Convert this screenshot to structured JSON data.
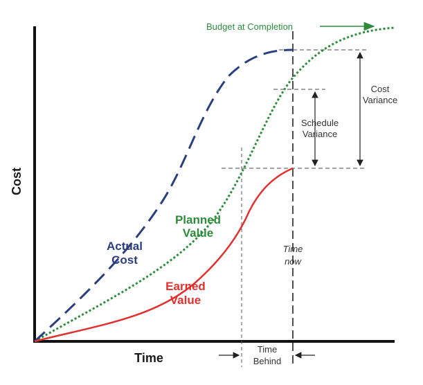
{
  "axes": {
    "x_title": "Time",
    "y_title": "Cost"
  },
  "labels": {
    "budget_at_completion": "Budget at Completion",
    "planned_value": [
      "Planned",
      "Value"
    ],
    "actual_cost": [
      "Actual",
      "Cost"
    ],
    "earned_value": [
      "Earned",
      "Value"
    ],
    "cost_variance": [
      "Cost",
      "Variance"
    ],
    "schedule_variance": [
      "Schedule",
      "Variance"
    ],
    "time_now": [
      "Time",
      "now"
    ],
    "time_behind": [
      "Time",
      "Behind"
    ]
  },
  "colors": {
    "planned_value": "#2e8b3c",
    "actual_cost": "#2b3f7f",
    "earned_value": "#e03030",
    "axis": "#111111",
    "guide": "#444444"
  }
}
